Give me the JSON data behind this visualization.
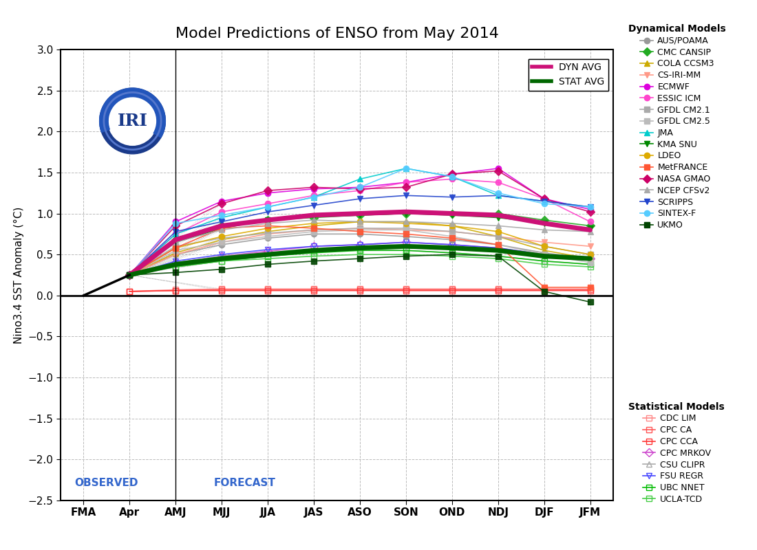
{
  "title": "Model Predictions of ENSO from May 2014",
  "ylabel": "Nino3.4 SST Anomaly (°C)",
  "xtick_labels": [
    "FMA",
    "Apr",
    "AMJ",
    "MJJ",
    "JJA",
    "JAS",
    "ASO",
    "SON",
    "OND",
    "NDJ",
    "DJF",
    "JFM"
  ],
  "ylim": [
    -2.5,
    3.0
  ],
  "observed_label": "OBSERVED",
  "forecast_label": "FORECAST",
  "dynamical_models": {
    "AUS/POAMA": {
      "color": "#999999",
      "marker": "o",
      "values": [
        null,
        0.25,
        0.5,
        0.62,
        0.7,
        0.75,
        0.75,
        0.72,
        0.68,
        0.62,
        0.52,
        0.45
      ]
    },
    "CMC CANSIP": {
      "color": "#22aa22",
      "marker": "D",
      "values": [
        null,
        0.25,
        0.68,
        0.85,
        0.92,
        0.95,
        0.98,
        1.0,
        1.0,
        1.0,
        0.92,
        0.85
      ]
    },
    "COLA CCSM3": {
      "color": "#ccaa00",
      "marker": "^",
      "values": [
        null,
        0.25,
        0.52,
        0.68,
        0.78,
        0.85,
        0.9,
        0.9,
        0.85,
        0.72,
        0.55,
        0.45
      ]
    },
    "CS-IRI-MM": {
      "color": "#ff9988",
      "marker": "v",
      "values": [
        null,
        0.25,
        0.5,
        0.65,
        0.75,
        0.8,
        0.82,
        0.8,
        0.78,
        0.72,
        0.65,
        0.6
      ]
    },
    "ECMWF": {
      "color": "#dd00dd",
      "marker": "o",
      "values": [
        null,
        0.25,
        0.9,
        1.15,
        1.25,
        1.3,
        1.32,
        1.38,
        1.48,
        1.55,
        1.18,
        1.05
      ]
    },
    "ESSIC ICM": {
      "color": "#ff44cc",
      "marker": "o",
      "values": [
        null,
        0.25,
        0.75,
        1.02,
        1.12,
        1.22,
        1.28,
        1.38,
        1.42,
        1.38,
        1.18,
        0.9
      ]
    },
    "GFDL CM2.1": {
      "color": "#aaaaaa",
      "marker": "s",
      "values": [
        null,
        0.25,
        0.6,
        0.7,
        0.76,
        0.8,
        0.82,
        0.82,
        0.78,
        0.72,
        0.6,
        0.5
      ]
    },
    "GFDL CM2.5": {
      "color": "#bbbbbb",
      "marker": "s",
      "values": [
        null,
        0.25,
        0.55,
        0.65,
        0.72,
        0.78,
        0.8,
        0.8,
        0.72,
        0.62,
        0.5,
        0.4
      ]
    },
    "JMA": {
      "color": "#00cccc",
      "marker": "^",
      "values": [
        null,
        0.25,
        0.75,
        0.95,
        1.08,
        1.2,
        1.42,
        1.55,
        1.45,
        1.22,
        1.15,
        1.08
      ]
    },
    "KMA SNU": {
      "color": "#008800",
      "marker": "v",
      "values": [
        null,
        0.25,
        0.65,
        0.82,
        0.92,
        0.96,
        0.98,
        1.0,
        0.98,
        0.95,
        0.88,
        0.82
      ]
    },
    "LDEO": {
      "color": "#ddaa00",
      "marker": "o",
      "values": [
        null,
        0.25,
        0.58,
        0.72,
        0.82,
        0.88,
        0.9,
        0.88,
        0.85,
        0.78,
        0.6,
        0.5
      ]
    },
    "MetFRANCE": {
      "color": "#ff5533",
      "marker": "s",
      "values": [
        null,
        0.25,
        0.58,
        0.82,
        0.85,
        0.82,
        0.78,
        0.75,
        0.7,
        0.62,
        0.1,
        0.1
      ]
    },
    "NASA GMAO": {
      "color": "#cc0066",
      "marker": "D",
      "values": [
        null,
        0.25,
        0.85,
        1.12,
        1.28,
        1.32,
        1.3,
        1.32,
        1.48,
        1.52,
        1.18,
        1.02
      ]
    },
    "NCEP CFSv2": {
      "color": "#aaaaaa",
      "marker": "^",
      "values": [
        null,
        0.25,
        0.65,
        0.8,
        0.88,
        0.92,
        0.9,
        0.9,
        0.88,
        0.85,
        0.8,
        0.78
      ]
    },
    "SCRIPPS": {
      "color": "#2244cc",
      "marker": "v",
      "values": [
        null,
        0.25,
        0.78,
        0.9,
        1.02,
        1.1,
        1.18,
        1.22,
        1.2,
        1.22,
        1.15,
        1.08
      ]
    },
    "SINTEX-F": {
      "color": "#55ccff",
      "marker": "o",
      "values": [
        null,
        0.25,
        0.88,
        0.98,
        1.08,
        1.2,
        1.32,
        1.55,
        1.45,
        1.25,
        1.12,
        1.08
      ]
    },
    "UKMO": {
      "color": "#004400",
      "marker": "s",
      "values": [
        null,
        0.25,
        0.28,
        0.32,
        0.38,
        0.42,
        0.45,
        0.48,
        0.5,
        0.48,
        0.05,
        -0.08
      ]
    }
  },
  "statistical_models": {
    "CDC LIM": {
      "color": "#ff8888",
      "marker": "s",
      "values": [
        null,
        0.05,
        0.07,
        0.08,
        0.08,
        0.08,
        0.08,
        0.08,
        0.08,
        0.08,
        0.08,
        0.08
      ]
    },
    "CPC CA": {
      "color": "#ff5555",
      "marker": "s",
      "values": [
        null,
        0.05,
        0.06,
        0.07,
        0.07,
        0.07,
        0.07,
        0.07,
        0.07,
        0.07,
        0.07,
        0.07
      ]
    },
    "CPC CCA": {
      "color": "#ff3333",
      "marker": "s",
      "values": [
        null,
        0.05,
        0.06,
        0.06,
        0.06,
        0.06,
        0.06,
        0.06,
        0.06,
        0.06,
        0.06,
        0.06
      ]
    },
    "CPC MRKOV": {
      "color": "#cc44cc",
      "marker": "D",
      "values": [
        null,
        0.25,
        0.4,
        0.48,
        0.54,
        0.6,
        0.62,
        0.65,
        0.62,
        0.58,
        0.5,
        0.45
      ]
    },
    "CSU CLIPR": {
      "color": "#aaaaaa",
      "marker": "^",
      "values": [
        null,
        0.25,
        0.4,
        0.48,
        0.52,
        0.55,
        0.55,
        0.55,
        0.52,
        0.48,
        0.42,
        0.38
      ]
    },
    "FSU REGR": {
      "color": "#4444ff",
      "marker": "v",
      "values": [
        null,
        0.25,
        0.42,
        0.5,
        0.56,
        0.6,
        0.62,
        0.65,
        0.62,
        0.58,
        0.5,
        0.45
      ]
    },
    "UBC NNET": {
      "color": "#00bb00",
      "marker": "s",
      "values": [
        null,
        0.25,
        0.35,
        0.42,
        0.48,
        0.52,
        0.55,
        0.55,
        0.52,
        0.48,
        0.42,
        0.38
      ]
    },
    "UCLA-TCD": {
      "color": "#44cc44",
      "marker": "s",
      "values": [
        null,
        0.25,
        0.35,
        0.42,
        0.45,
        0.48,
        0.5,
        0.5,
        0.48,
        0.45,
        0.38,
        0.35
      ]
    }
  },
  "dyn_avg": [
    null,
    0.25,
    0.68,
    0.85,
    0.92,
    0.98,
    1.0,
    1.02,
    1.0,
    0.98,
    0.88,
    0.8
  ],
  "stat_avg": [
    null,
    0.25,
    0.38,
    0.45,
    0.5,
    0.55,
    0.58,
    0.6,
    0.58,
    0.55,
    0.48,
    0.45
  ],
  "background_color": "#ffffff",
  "grid_color": "#bbbbbb",
  "title_fontsize": 16,
  "label_fontsize": 11
}
